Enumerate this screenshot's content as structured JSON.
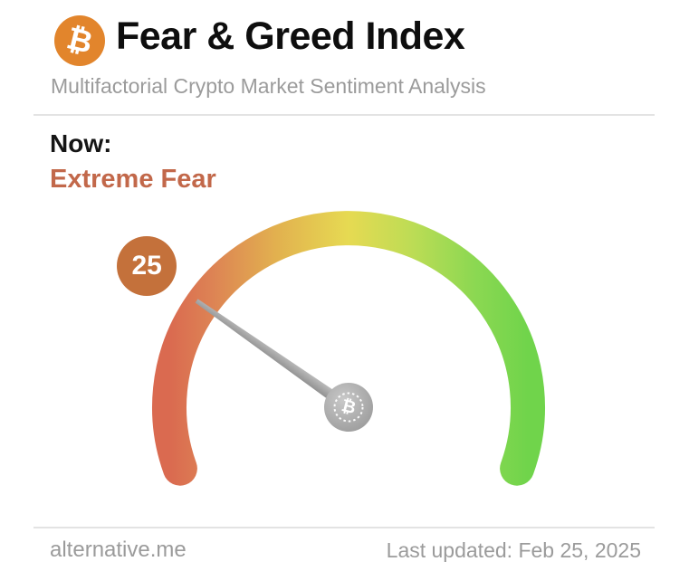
{
  "header": {
    "title": "Fear & Greed Index",
    "subtitle": "Multifactorial Crypto Market Sentiment Analysis"
  },
  "icons": {
    "bitcoin": "₿"
  },
  "colors": {
    "bitcoin_orange": "#e2852c",
    "muted_text": "#9b9b9b"
  },
  "status": {
    "label": "Now:",
    "value": "Extreme Fear",
    "value_color": "#c2684a"
  },
  "chart_data": {
    "type": "gauge",
    "title": "Fear & Greed Index",
    "value": 25,
    "min": 0,
    "max": 100,
    "label": "Extreme Fear",
    "start_angle_deg": 200,
    "sweep_deg": 220,
    "badge_color": "#c4713b",
    "needle_color": "#9e9e9e",
    "gradient_stops": [
      {
        "offset": "0%",
        "color": "#da6a50"
      },
      {
        "offset": "12%",
        "color": "#dd8354"
      },
      {
        "offset": "30%",
        "color": "#e2b14f"
      },
      {
        "offset": "50%",
        "color": "#e6da52"
      },
      {
        "offset": "68%",
        "color": "#bcdc55"
      },
      {
        "offset": "85%",
        "color": "#8cd852"
      },
      {
        "offset": "100%",
        "color": "#70d44b"
      }
    ]
  },
  "footer": {
    "source": "alternative.me",
    "last_updated": "Last updated: Feb 25, 2025"
  }
}
